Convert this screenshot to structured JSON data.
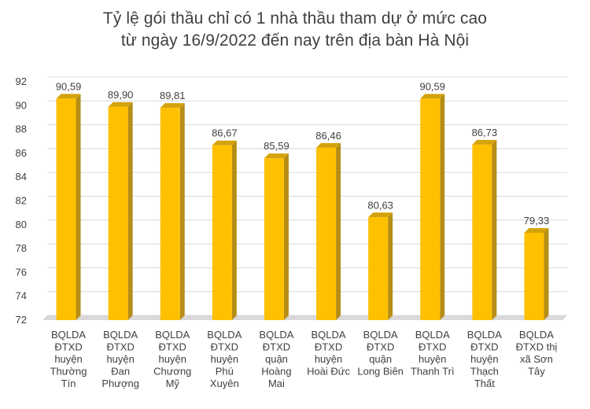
{
  "chart_data": {
    "type": "bar",
    "title": [
      "Tỷ lệ gói thầu chỉ có 1 nhà thầu tham dự ở mức cao",
      "từ ngày 16/9/2022 đến nay trên địa bàn Hà Nội"
    ],
    "categories": [
      [
        "BQLDA",
        "ĐTXD",
        "huyện",
        "Thường",
        "Tín"
      ],
      [
        "BQLDA",
        "ĐTXD",
        "huyện",
        "Đan",
        "Phượng"
      ],
      [
        "BQLDA",
        "ĐTXD",
        "huyện",
        "Chương",
        "Mỹ"
      ],
      [
        "BQLDA",
        "ĐTXD",
        "huyện",
        "Phú",
        "Xuyên"
      ],
      [
        "BQLDA",
        "ĐTXD",
        "quận",
        "Hoàng",
        "Mai"
      ],
      [
        "BQLDA",
        "ĐTXD",
        "huyện",
        "Hoài Đức"
      ],
      [
        "BQLDA",
        "ĐTXD",
        "quận",
        "Long Biên"
      ],
      [
        "BQLDA",
        "ĐTXD",
        "huyện",
        "Thanh Trì"
      ],
      [
        "BQLDA",
        "ĐTXD",
        "huyện",
        "Thạch",
        "Thất"
      ],
      [
        "BQLDA",
        "ĐTXD thị",
        "xã Sơn",
        "Tây"
      ]
    ],
    "values": [
      90.59,
      89.9,
      89.81,
      86.67,
      85.59,
      86.46,
      80.63,
      90.59,
      86.73,
      79.33
    ],
    "value_labels": [
      "90,59",
      "89,90",
      "89,81",
      "86,67",
      "85,59",
      "86,46",
      "80,63",
      "90,59",
      "86,73",
      "79,33"
    ],
    "ylim": [
      72,
      92
    ],
    "yticks": [
      72,
      74,
      76,
      78,
      80,
      82,
      84,
      86,
      88,
      90,
      92
    ],
    "grid": true,
    "legend": "none",
    "colors": {
      "bar_front": "#FFC000",
      "bar_side": "#B58E16",
      "bar_top": "#D4A20C",
      "gridline": "#D9D9D9",
      "floor": "#D9D9D9",
      "axis_text": "#404040",
      "title_text": "#404040"
    }
  }
}
